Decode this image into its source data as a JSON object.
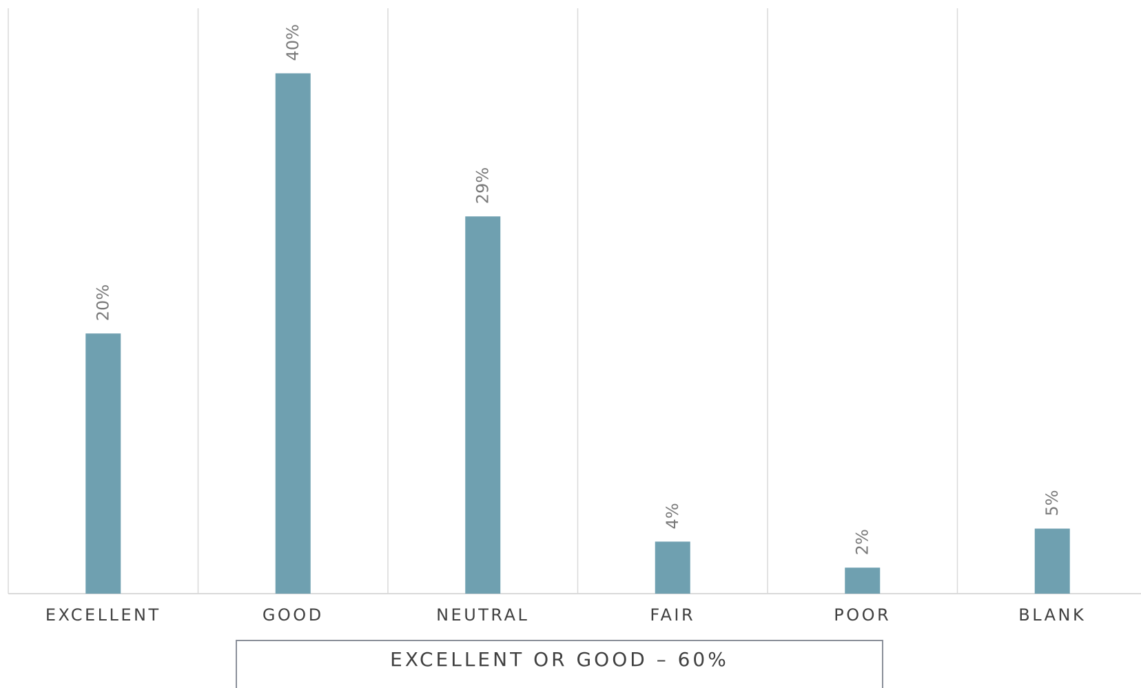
{
  "chart_data": {
    "type": "bar",
    "categories": [
      "EXCELLENT",
      "GOOD",
      "NEUTRAL",
      "FAIR",
      "POOR",
      "BLANK"
    ],
    "values": [
      20,
      40,
      29,
      4,
      2,
      5
    ],
    "data_labels": [
      "20%",
      "40%",
      "29%",
      "4%",
      "2%",
      "5%"
    ],
    "ylim": [
      0,
      45
    ],
    "bar_color": "#6fa0b0",
    "grid": "vertical separators",
    "annotation": "EXCELLENT OR GOOD – 60%"
  }
}
